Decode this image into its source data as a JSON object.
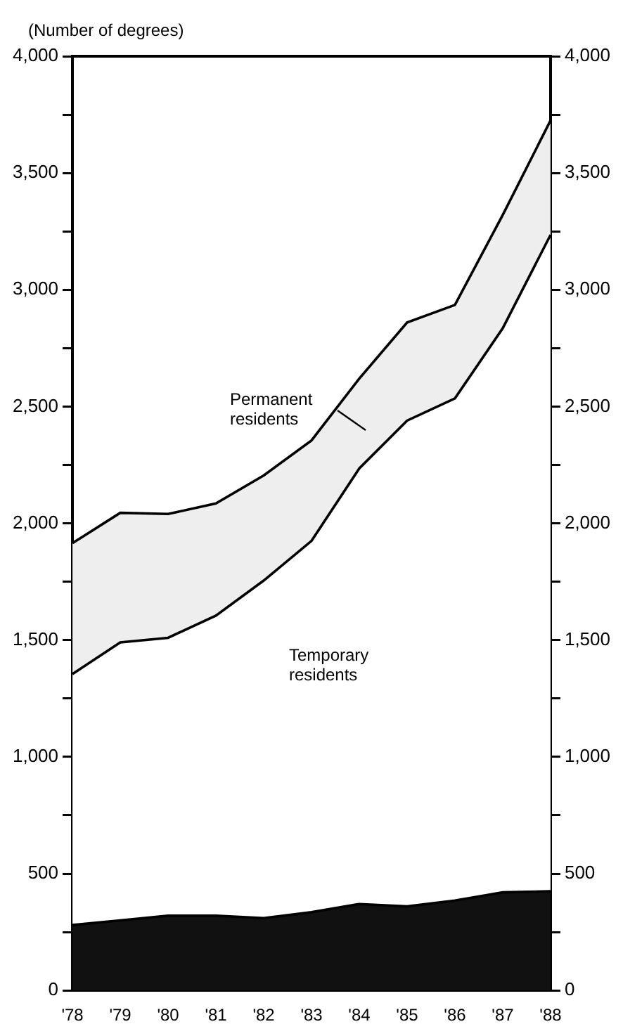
{
  "chart_data": {
    "type": "area",
    "stacked": true,
    "ylabel": "(Number of degrees)",
    "categories": [
      "'78",
      "'79",
      "'80",
      "'81",
      "'82",
      "'83",
      "'84",
      "'85",
      "'86",
      "'87",
      "'88"
    ],
    "series": [
      {
        "color": "#111111",
        "values": [
          280,
          300,
          320,
          320,
          310,
          335,
          370,
          360,
          385,
          420,
          425
        ]
      },
      {
        "name": "Temporary residents",
        "color": "#ffffff",
        "values": [
          1075,
          1190,
          1190,
          1285,
          1445,
          1590,
          1865,
          2080,
          2150,
          2415,
          2810
        ]
      },
      {
        "name": "Permanent residents",
        "color": "#eeeeee",
        "values": [
          560,
          555,
          530,
          480,
          450,
          430,
          385,
          420,
          400,
          485,
          490
        ]
      }
    ],
    "ylim": [
      0,
      4000
    ],
    "yticks": [
      0,
      {
        "value": 250,
        "label": null
      },
      {
        "value": 500,
        "label": "500"
      },
      {
        "value": 750,
        "label": null
      },
      {
        "value": 1000,
        "label": "1,000"
      },
      {
        "value": 1250,
        "label": null
      },
      {
        "value": 1500,
        "label": "1,500"
      },
      {
        "value": 1750,
        "label": null
      },
      {
        "value": 2000,
        "label": "2,000"
      },
      {
        "value": 2250,
        "label": null
      },
      {
        "value": 2500,
        "label": "2,500"
      },
      {
        "value": 2750,
        "label": null
      },
      {
        "value": 3000,
        "label": "3,000"
      },
      {
        "value": 3250,
        "label": null
      },
      {
        "value": 3500,
        "label": "3,500"
      },
      {
        "value": 3750,
        "label": null
      },
      {
        "value": 4000,
        "label": "4,000"
      }
    ],
    "y2lim": [
      0,
      4000
    ],
    "y2ticks": [
      0,
      {
        "value": 250,
        "label": null
      },
      {
        "value": 500,
        "label": "500"
      },
      {
        "value": 750,
        "label": null
      },
      {
        "value": 1000,
        "label": "1,000"
      },
      {
        "value": 1250,
        "label": null
      },
      {
        "value": 1500,
        "label": "1,500"
      },
      {
        "value": 1750,
        "label": null
      },
      {
        "value": 2000,
        "label": "2,000"
      },
      {
        "value": 2250,
        "label": null
      },
      {
        "value": 2500,
        "label": "2,500"
      },
      {
        "value": 2750,
        "label": null
      },
      {
        "value": 3000,
        "label": "3,000"
      },
      {
        "value": 3250,
        "label": null
      },
      {
        "value": 3500,
        "label": "3,500"
      },
      {
        "value": 3750,
        "label": null
      },
      {
        "value": 4000,
        "label": "4,000"
      }
    ]
  }
}
